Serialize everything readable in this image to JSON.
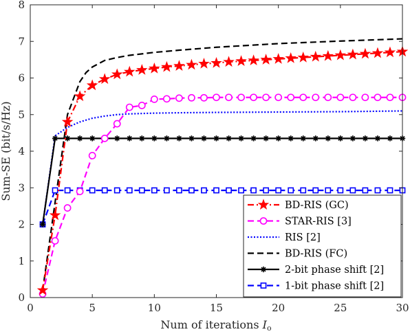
{
  "chart_data": {
    "type": "line",
    "xlabel": "Num of iterations",
    "xlabel_symbol": "I",
    "xlabel_subscript": "o",
    "ylabel": "Sum-SE (bit/s/Hz)",
    "xlim": [
      0,
      30
    ],
    "ylim": [
      0,
      8
    ],
    "xticks": [
      0,
      5,
      10,
      15,
      20,
      25,
      30
    ],
    "yticks": [
      0,
      1,
      2,
      3,
      4,
      5,
      6,
      7,
      8
    ],
    "grid": false,
    "legend_position": "bottom-right",
    "series": [
      {
        "name": "BD-RIS (GC)",
        "color": "#ff0000",
        "line_style": "dash-dot",
        "marker": "star",
        "marker_fill": "#ff0000",
        "x": [
          1,
          2,
          3,
          4,
          5,
          6,
          7,
          8,
          9,
          10,
          11,
          12,
          13,
          14,
          15,
          16,
          17,
          18,
          19,
          20,
          21,
          22,
          23,
          24,
          25,
          26,
          27,
          28,
          29,
          30
        ],
        "values": [
          0.2,
          2.25,
          4.8,
          5.5,
          5.8,
          5.97,
          6.1,
          6.17,
          6.22,
          6.26,
          6.3,
          6.33,
          6.36,
          6.39,
          6.41,
          6.44,
          6.46,
          6.48,
          6.5,
          6.52,
          6.54,
          6.56,
          6.58,
          6.6,
          6.62,
          6.64,
          6.66,
          6.68,
          6.7,
          6.72
        ]
      },
      {
        "name": "STAR-RIS [3]",
        "color": "#ff00ff",
        "line_style": "dash",
        "marker": "circle",
        "marker_fill": "none",
        "x": [
          1,
          2,
          3,
          4,
          5,
          6,
          7,
          8,
          9,
          10,
          11,
          12,
          13,
          14,
          15,
          16,
          17,
          18,
          19,
          20,
          21,
          22,
          23,
          24,
          25,
          26,
          27,
          28,
          29,
          30
        ],
        "values": [
          0.1,
          1.55,
          2.45,
          2.9,
          3.88,
          4.35,
          4.75,
          5.2,
          5.25,
          5.42,
          5.43,
          5.45,
          5.46,
          5.46,
          5.47,
          5.47,
          5.47,
          5.47,
          5.47,
          5.47,
          5.47,
          5.47,
          5.47,
          5.47,
          5.47,
          5.47,
          5.47,
          5.47,
          5.47,
          5.47
        ]
      },
      {
        "name": "RIS [2]",
        "color": "#0000ff",
        "line_style": "dotted",
        "marker": "none",
        "x": [
          1,
          2,
          3,
          4,
          5,
          6,
          7,
          8,
          9,
          10,
          12,
          15,
          20,
          25,
          30
        ],
        "values": [
          2.0,
          4.42,
          4.65,
          4.8,
          4.9,
          4.96,
          5.0,
          5.02,
          5.03,
          5.04,
          5.05,
          5.06,
          5.07,
          5.08,
          5.1
        ]
      },
      {
        "name": "BD-RIS (FC)",
        "color": "#000000",
        "line_style": "dash",
        "marker": "none",
        "x": [
          1,
          2,
          3,
          4,
          4.5,
          5,
          6,
          7,
          8,
          9,
          10,
          12,
          15,
          20,
          25,
          30
        ],
        "values": [
          0.2,
          2.6,
          5.0,
          5.9,
          6.15,
          6.3,
          6.48,
          6.56,
          6.62,
          6.66,
          6.7,
          6.76,
          6.84,
          6.94,
          7.01,
          7.07
        ]
      },
      {
        "name": "2-bit phase shift [2]",
        "color": "#000000",
        "line_style": "solid",
        "marker": "asterisk",
        "marker_fill": "#000000",
        "x": [
          1,
          2,
          3,
          4,
          5,
          6,
          7,
          8,
          9,
          10,
          11,
          12,
          13,
          14,
          15,
          16,
          17,
          18,
          19,
          20,
          21,
          22,
          23,
          24,
          25,
          26,
          27,
          28,
          29,
          30
        ],
        "values": [
          2.0,
          4.35,
          4.35,
          4.35,
          4.35,
          4.35,
          4.35,
          4.35,
          4.35,
          4.35,
          4.35,
          4.35,
          4.35,
          4.35,
          4.35,
          4.35,
          4.35,
          4.35,
          4.35,
          4.35,
          4.35,
          4.35,
          4.35,
          4.35,
          4.35,
          4.35,
          4.35,
          4.35,
          4.35,
          4.35
        ]
      },
      {
        "name": "1-bit phase shift [2]",
        "color": "#0000ff",
        "line_style": "dash",
        "marker": "square",
        "marker_fill": "none",
        "x": [
          1,
          2,
          3,
          4,
          5,
          6,
          7,
          8,
          9,
          10,
          11,
          12,
          13,
          14,
          15,
          16,
          17,
          18,
          19,
          20,
          21,
          22,
          23,
          24,
          25,
          26,
          27,
          28,
          29,
          30
        ],
        "values": [
          2.0,
          2.93,
          2.93,
          2.93,
          2.93,
          2.93,
          2.93,
          2.93,
          2.93,
          2.93,
          2.93,
          2.93,
          2.93,
          2.93,
          2.93,
          2.93,
          2.93,
          2.93,
          2.93,
          2.93,
          2.93,
          2.93,
          2.93,
          2.93,
          2.93,
          2.93,
          2.93,
          2.93,
          2.93,
          2.93
        ]
      }
    ]
  }
}
